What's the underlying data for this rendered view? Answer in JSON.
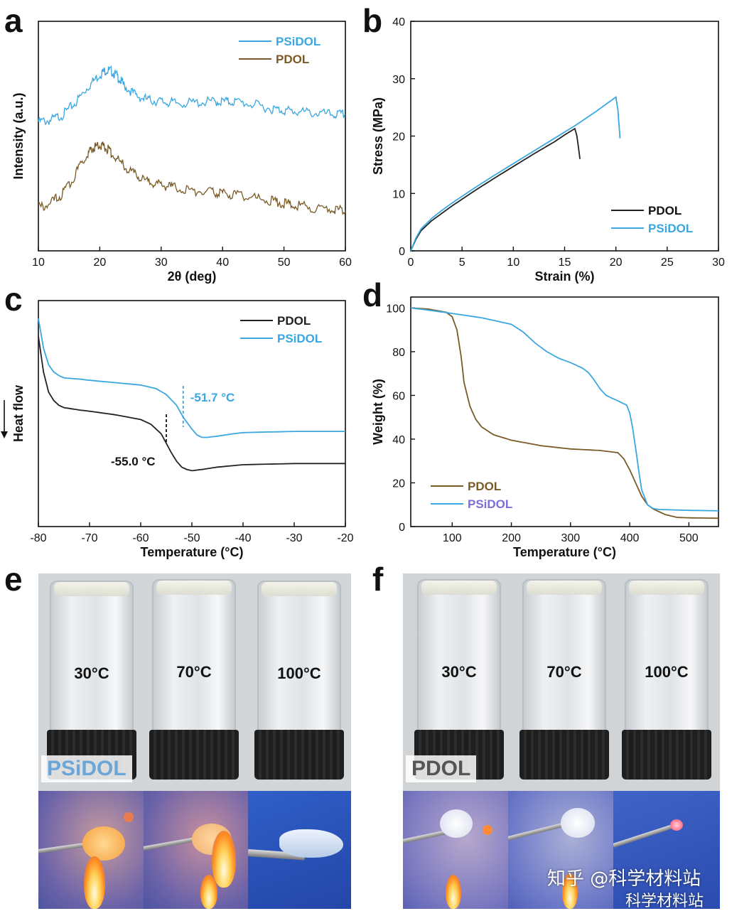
{
  "panels": {
    "a": "a",
    "b": "b",
    "c": "c",
    "d": "d",
    "e": "e",
    "f": "f"
  },
  "colors": {
    "psidol": "#3aa7e0",
    "pdol": "#7a5a26",
    "black": "#222222"
  },
  "chart_data": [
    {
      "id": "a",
      "type": "line",
      "xlabel": "2θ (deg)",
      "ylabel": "Intensity (a.u.)",
      "xlim": [
        10,
        60
      ],
      "xticks": [
        10,
        20,
        30,
        40,
        50,
        60
      ],
      "yticks": [],
      "legend": "top-right",
      "series": [
        {
          "name": "PSiDOL",
          "color": "#3aa7e0",
          "x": [
            10,
            12,
            14,
            16,
            18,
            20,
            21,
            22,
            23,
            24,
            26,
            28,
            30,
            32,
            35,
            38,
            40,
            42,
            45,
            48,
            50,
            52,
            55,
            58,
            60
          ],
          "y": [
            9.0,
            9.1,
            9.5,
            10.3,
            11.4,
            12.3,
            12.6,
            12.5,
            12.1,
            11.5,
            10.8,
            10.5,
            10.4,
            10.3,
            10.3,
            10.4,
            10.4,
            10.4,
            10.2,
            9.9,
            9.8,
            9.7,
            9.6,
            9.5,
            9.5
          ]
        },
        {
          "name": "PDOL",
          "color": "#7a5a26",
          "x": [
            10,
            12,
            14,
            16,
            18,
            19,
            20,
            21,
            22,
            24,
            26,
            28,
            30,
            32,
            35,
            38,
            40,
            42,
            45,
            48,
            50,
            52,
            55,
            58,
            60
          ],
          "y": [
            3.0,
            3.3,
            4.0,
            5.3,
            6.8,
            7.2,
            7.4,
            7.2,
            6.8,
            5.9,
            5.2,
            4.8,
            4.6,
            4.4,
            4.2,
            4.1,
            4.0,
            3.9,
            3.7,
            3.5,
            3.3,
            3.2,
            3.0,
            2.9,
            2.8
          ]
        }
      ]
    },
    {
      "id": "b",
      "type": "line",
      "xlabel": "Strain (%)",
      "ylabel": "Stress (MPa)",
      "xlim": [
        0,
        30
      ],
      "ylim": [
        0,
        40
      ],
      "xticks": [
        0,
        5,
        10,
        15,
        20,
        25,
        30
      ],
      "yticks": [
        0,
        10,
        20,
        30,
        40
      ],
      "legend": "bottom-right",
      "series": [
        {
          "name": "PDOL",
          "color": "#222222",
          "x": [
            0,
            0.5,
            1,
            2,
            3,
            4,
            6,
            8,
            10,
            12,
            14,
            15,
            16,
            16.2,
            16.5
          ],
          "y": [
            0,
            2.0,
            3.5,
            5.2,
            6.5,
            7.8,
            10.2,
            12.5,
            14.7,
            16.9,
            19.0,
            20.2,
            21.3,
            20.0,
            16.0
          ]
        },
        {
          "name": "PSiDOL",
          "color": "#3aa7e0",
          "x": [
            0,
            0.5,
            1,
            2,
            3,
            4,
            6,
            8,
            10,
            12,
            14,
            16,
            18,
            19,
            20,
            20.2,
            20.4
          ],
          "y": [
            0,
            2.2,
            3.8,
            5.6,
            7.0,
            8.3,
            10.7,
            13.0,
            15.2,
            17.4,
            19.6,
            21.8,
            24.2,
            25.5,
            26.8,
            24.5,
            19.6
          ]
        }
      ]
    },
    {
      "id": "c",
      "type": "line",
      "xlabel": "Temperature (°C)",
      "ylabel": "Heat flow",
      "xlim": [
        -80,
        -20
      ],
      "xticks": [
        -80,
        -70,
        -60,
        -50,
        -40,
        -30,
        -20
      ],
      "yticks": [],
      "legend": "top-right",
      "annotations": [
        {
          "text": "-51.7 °C",
          "x": -51.7,
          "color": "#3aa7e0"
        },
        {
          "text": "-55.0 °C",
          "x": -55.0,
          "color": "#111111"
        }
      ],
      "series": [
        {
          "name": "PDOL",
          "color": "#222222",
          "x": [
            -80,
            -79,
            -78,
            -77,
            -76,
            -75,
            -72,
            -70,
            -65,
            -60,
            -58,
            -56,
            -55,
            -54,
            -53,
            -52,
            -51,
            -50,
            -48,
            -45,
            -40,
            -30,
            -20
          ],
          "y": [
            14,
            11,
            9.3,
            8.6,
            8.2,
            8.0,
            7.8,
            7.7,
            7.4,
            7.0,
            6.6,
            5.8,
            5.0,
            4.2,
            3.5,
            3.0,
            2.8,
            2.7,
            2.8,
            3.0,
            3.2,
            3.3,
            3.3
          ]
        },
        {
          "name": "PSiDOL",
          "color": "#3aa7e0",
          "x": [
            -80,
            -79,
            -78,
            -77,
            -76,
            -75,
            -72,
            -70,
            -65,
            -60,
            -57,
            -55,
            -53,
            -51.7,
            -50,
            -49,
            -48,
            -47,
            -45,
            -42,
            -40,
            -30,
            -20
          ],
          "y": [
            15.5,
            13.0,
            11.6,
            11.0,
            10.7,
            10.5,
            10.4,
            10.3,
            10.1,
            9.9,
            9.6,
            9.1,
            8.2,
            7.2,
            6.2,
            5.7,
            5.5,
            5.5,
            5.6,
            5.8,
            5.9,
            6.0,
            6.0
          ]
        }
      ]
    },
    {
      "id": "d",
      "type": "line",
      "xlabel": "Temperature (°C)",
      "ylabel": "Weight (%)",
      "xlim": [
        30,
        550
      ],
      "ylim": [
        0,
        105
      ],
      "xticks": [
        100,
        200,
        300,
        400,
        500
      ],
      "yticks": [
        0,
        20,
        40,
        60,
        80,
        100
      ],
      "legend": "bottom-left",
      "series": [
        {
          "name": "PDOL",
          "color": "#7a5a26",
          "x": [
            30,
            60,
            90,
            100,
            108,
            115,
            120,
            130,
            140,
            150,
            170,
            200,
            250,
            300,
            350,
            380,
            390,
            400,
            410,
            420,
            430,
            440,
            460,
            480,
            500,
            550
          ],
          "y": [
            100,
            99.5,
            98,
            96,
            90,
            78,
            66,
            55,
            49,
            45.5,
            42,
            39.5,
            37,
            35.5,
            34.8,
            33.8,
            31,
            26,
            20,
            14,
            10,
            8,
            5.5,
            4.2,
            4.0,
            3.8
          ]
        },
        {
          "name": "PSiDOL",
          "color": "#3aa7e0",
          "x": [
            30,
            60,
            100,
            150,
            200,
            220,
            240,
            260,
            280,
            300,
            320,
            330,
            340,
            350,
            360,
            380,
            395,
            400,
            405,
            410,
            415,
            420,
            430,
            440,
            450,
            500,
            550
          ],
          "y": [
            100,
            99,
            97.5,
            95.5,
            92.5,
            89,
            84,
            80,
            77,
            75,
            72.5,
            70.5,
            67,
            63,
            60,
            57.5,
            55.5,
            52,
            45,
            36,
            26,
            17,
            10,
            8.2,
            7.8,
            7.4,
            7.2
          ]
        }
      ]
    }
  ],
  "photos": {
    "e": {
      "label": "PSiDOL",
      "temps": [
        "30°C",
        "70°C",
        "100°C"
      ]
    },
    "f": {
      "label": "PDOL",
      "temps": [
        "30°C",
        "70°C",
        "100°C"
      ]
    }
  },
  "watermark": {
    "line1": "知乎 @科学材料站",
    "line2": "科学材料站"
  }
}
